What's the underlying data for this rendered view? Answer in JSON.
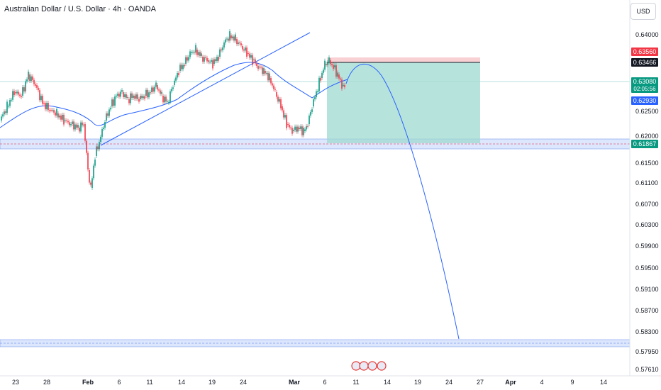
{
  "header": {
    "title": "Australian Dollar / U.S. Dollar · 4h · OANDA",
    "currency": "USD"
  },
  "chart_data": {
    "type": "candlestick",
    "yticks": [
      "0.64000",
      "0.62500",
      "0.62000",
      "0.61500",
      "0.61100",
      "0.60700",
      "0.60300",
      "0.59900",
      "0.59500",
      "0.59100",
      "0.58700",
      "0.58300",
      "0.57950",
      "0.57610"
    ],
    "xticks": [
      "23",
      "28",
      "Feb",
      "6",
      "11",
      "14",
      "19",
      "24",
      "Mar",
      "6",
      "11",
      "14",
      "19",
      "24",
      "27",
      "Apr",
      "4",
      "9",
      "14"
    ],
    "price_badges": [
      {
        "label": "0.63560",
        "color": "#f23645"
      },
      {
        "label": "0.63466",
        "color": "#131722"
      },
      {
        "label": "0.63080",
        "sub": "02:05:56",
        "color": "#089981"
      },
      {
        "label": "0.62930",
        "color": "#2962ff"
      },
      {
        "label": "0.61867",
        "color": "#089981"
      }
    ],
    "colors": {
      "up": "#089981",
      "down": "#f23645",
      "ma": "#2962ff",
      "zone": "#b2c8f8",
      "target": "#9fd9d2",
      "stop": "#f7c6c9"
    }
  },
  "event_icons": [
    "flag-icon",
    "flag-icon",
    "flag-icon",
    "flag-icon"
  ]
}
